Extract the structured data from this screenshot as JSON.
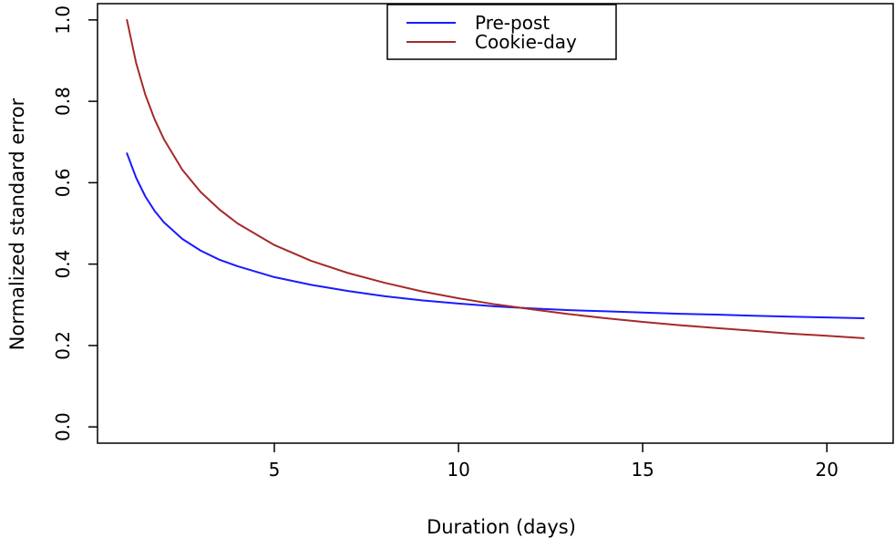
{
  "chart_data": {
    "type": "line",
    "xlabel": "Duration (days)",
    "ylabel": "Normalized standard error",
    "xlim": [
      0.2,
      21.8
    ],
    "ylim": [
      -0.04,
      1.04
    ],
    "x_ticks": [
      5,
      10,
      15,
      20
    ],
    "x_tick_labels": [
      "5",
      "10",
      "15",
      "20"
    ],
    "y_ticks": [
      0.0,
      0.2,
      0.4,
      0.6,
      0.8,
      1.0
    ],
    "y_tick_labels": [
      "0.0",
      "0.2",
      "0.4",
      "0.6",
      "0.8",
      "1.0"
    ],
    "grid": false,
    "legend_position": "top",
    "series": [
      {
        "name": "Pre-post",
        "color": "#1a1aff",
        "x": [
          1,
          1.25,
          1.5,
          1.75,
          2,
          2.5,
          3,
          3.5,
          4,
          5,
          6,
          7,
          8,
          9,
          10,
          11,
          12,
          13,
          14,
          15,
          16,
          17,
          18,
          19,
          20,
          21
        ],
        "y": [
          0.672,
          0.612,
          0.566,
          0.531,
          0.503,
          0.462,
          0.433,
          0.411,
          0.395,
          0.368,
          0.349,
          0.334,
          0.321,
          0.311,
          0.303,
          0.296,
          0.291,
          0.287,
          0.284,
          0.281,
          0.278,
          0.276,
          0.273,
          0.271,
          0.269,
          0.267
        ]
      },
      {
        "name": "Cookie-day",
        "color": "#a52a2a",
        "x": [
          1,
          1.25,
          1.5,
          1.75,
          2,
          2.5,
          3,
          3.5,
          4,
          5,
          6,
          7,
          8,
          9,
          10,
          11,
          12,
          13,
          14,
          15,
          16,
          17,
          18,
          19,
          20,
          21
        ],
        "y": [
          1.0,
          0.894,
          0.816,
          0.756,
          0.707,
          0.632,
          0.577,
          0.535,
          0.5,
          0.447,
          0.408,
          0.378,
          0.354,
          0.333,
          0.316,
          0.301,
          0.289,
          0.277,
          0.267,
          0.258,
          0.25,
          0.243,
          0.236,
          0.229,
          0.224,
          0.218
        ]
      }
    ]
  }
}
